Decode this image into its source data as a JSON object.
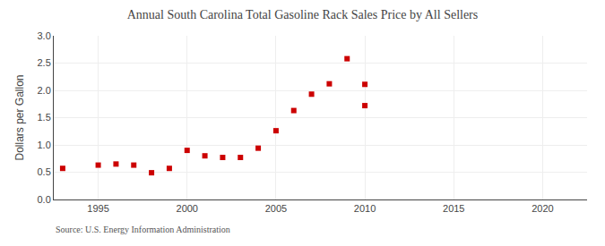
{
  "chart_data": {
    "type": "scatter",
    "title": "Annual South Carolina Total Gasoline Rack Sales Price by All Sellers",
    "ylabel": "Dollars per Gallon",
    "annotations": [
      "Source: U.S. Energy Information Administration"
    ],
    "x": [
      1993,
      1995,
      1996,
      1997,
      1998,
      1999,
      2000,
      2001,
      2002,
      2003,
      2004,
      2005,
      2006,
      2007,
      2008,
      2009,
      2010,
      2010
    ],
    "values": [
      0.57,
      0.63,
      0.65,
      0.63,
      0.49,
      0.57,
      0.9,
      0.8,
      0.77,
      0.77,
      0.94,
      1.26,
      1.63,
      1.93,
      2.12,
      2.58,
      1.72,
      2.11
    ],
    "color": "#cc0000",
    "marker": "square",
    "xlim": [
      1992.5,
      2022.5
    ],
    "xticks": [
      1995,
      2000,
      2005,
      2010,
      2015,
      2020
    ],
    "ylim": [
      0.0,
      3.0
    ],
    "yticks": [
      {
        "value": 0,
        "label": "0.0"
      },
      0.5,
      {
        "value": 1,
        "label": "1.0"
      },
      1.5,
      {
        "value": 2,
        "label": "2.0"
      },
      2.5,
      {
        "value": 3,
        "label": "3.0"
      }
    ],
    "grid": true
  }
}
